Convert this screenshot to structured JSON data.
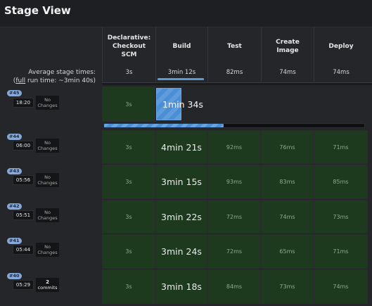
{
  "title": "Stage View",
  "stages": [
    {
      "name": "Declarative: Checkout SCM"
    },
    {
      "name": "Build"
    },
    {
      "name": "Test"
    },
    {
      "name": "Create Image"
    },
    {
      "name": "Deploy"
    }
  ],
  "average": {
    "label": "Average stage times:",
    "full_prefix": "(",
    "full_link": "full",
    "full_suffix": " run time: ~3min 40s)",
    "times": [
      "3s",
      "3min 12s",
      "82ms",
      "74ms",
      "74ms"
    ]
  },
  "runs": [
    {
      "id": "#45",
      "time": "18:20",
      "changes": "No Changes",
      "cells": [
        "3s",
        "1min 34s",
        "",
        "",
        ""
      ],
      "running": true,
      "progress": 0.46
    },
    {
      "id": "#44",
      "time": "06:00",
      "changes": "No Changes",
      "cells": [
        "3s",
        "4min 21s",
        "92ms",
        "76ms",
        "71ms"
      ]
    },
    {
      "id": "#43",
      "time": "05:56",
      "changes": "No Changes",
      "cells": [
        "3s",
        "3min 15s",
        "93ms",
        "83ms",
        "85ms"
      ]
    },
    {
      "id": "#42",
      "time": "05:51",
      "changes": "No Changes",
      "cells": [
        "3s",
        "3min 22s",
        "72ms",
        "74ms",
        "73ms"
      ]
    },
    {
      "id": "#41",
      "time": "05:44",
      "changes": "No Changes",
      "cells": [
        "3s",
        "3min 24s",
        "72ms",
        "65ms",
        "71ms"
      ]
    },
    {
      "id": "#40",
      "time": "05:29",
      "changes_count": "2",
      "changes_word": "commits",
      "cells": [
        "3s",
        "3min 18s",
        "84ms",
        "73ms",
        "74ms"
      ]
    }
  ],
  "colors": {
    "success": "#1d3a1f",
    "running": "#4a8fd6",
    "badge": "#86a8d6"
  }
}
